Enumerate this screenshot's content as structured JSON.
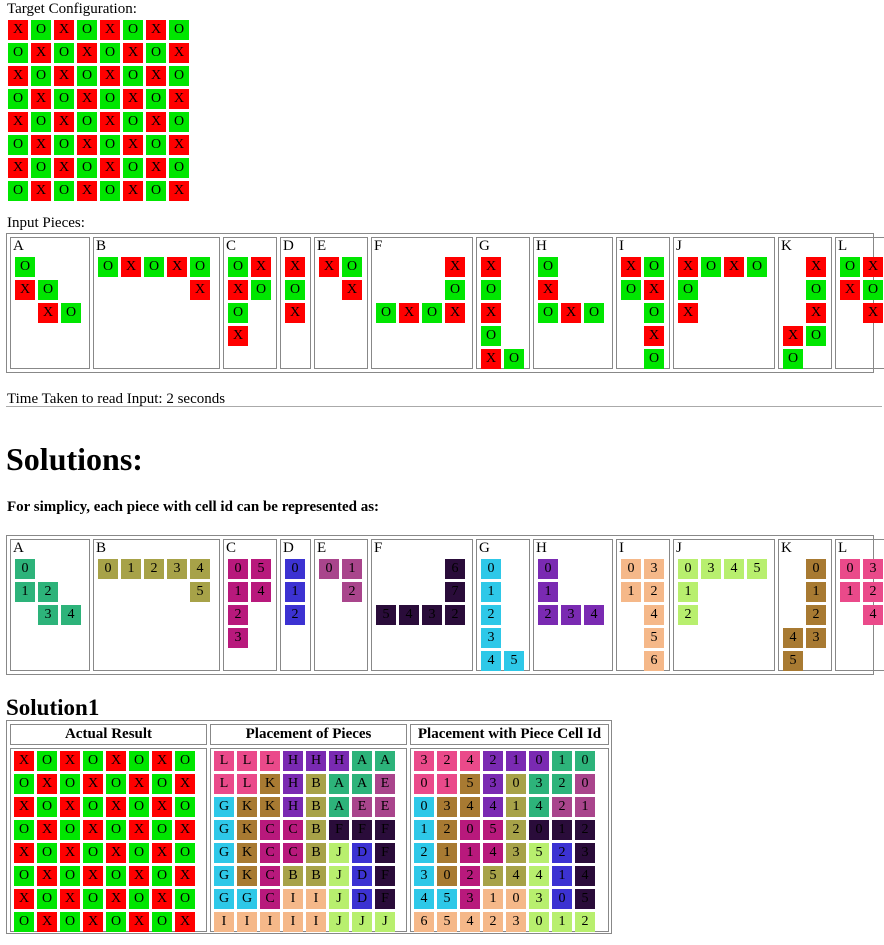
{
  "labels": {
    "target": "Target Configuration:",
    "input": "Input Pieces:",
    "time": "Time Taken to read Input: 2 seconds",
    "solutions": "Solutions:",
    "simplicity": "For simplicy, each piece with cell id can be represented as:",
    "solution1": "Solution1",
    "col_actual": "Actual Result",
    "col_placement": "Placement of Pieces",
    "col_cellid": "Placement with Piece Cell Id"
  },
  "colors": {
    "X": "#ff0000",
    "O": "#00e600",
    "A": "#2db37a",
    "B": "#a7a248",
    "C": "#b8197c",
    "D": "#3c32d2",
    "E": "#a9458c",
    "F": "#2a0c3a",
    "G": "#2ec8e8",
    "H": "#7a2ab2",
    "I": "#f5b889",
    "J": "#b8ef6e",
    "K": "#a87a32",
    "L": "#ea4a8a"
  },
  "target": [
    "XOXOXOXO",
    "OXOXOXOX",
    "XOXOXOXO",
    "OXOXOXOX",
    "XOXOXOXO",
    "OXOXOXOX",
    "XOXOXOXO",
    "OXOXOXOX"
  ],
  "pieces": [
    {
      "name": "A",
      "rows": [
        "O..",
        "XO.",
        ".XO"
      ],
      "ids": [
        "0..",
        "12.",
        ".34"
      ]
    },
    {
      "name": "B",
      "rows": [
        "OXOXO",
        "....X"
      ],
      "ids": [
        "01234",
        "....5"
      ]
    },
    {
      "name": "C",
      "rows": [
        "OX",
        "XO",
        "O.",
        "X."
      ],
      "ids": [
        "05",
        "14",
        "2.",
        "3."
      ]
    },
    {
      "name": "D",
      "rows": [
        "X",
        "O",
        "X"
      ],
      "ids": [
        "0",
        "1",
        "2"
      ]
    },
    {
      "name": "E",
      "rows": [
        "XO",
        ".X"
      ],
      "ids": [
        "01",
        ".2"
      ]
    },
    {
      "name": "F",
      "rows": [
        "...X",
        "...O",
        "OXOX"
      ],
      "ids": [
        "...6",
        "...7",
        "5432"
      ]
    },
    {
      "name": "G",
      "rows": [
        "X.",
        "O.",
        "X.",
        "O.",
        "XO"
      ],
      "ids": [
        "0.",
        "1.",
        "2.",
        "3.",
        "45"
      ]
    },
    {
      "name": "H",
      "rows": [
        "O..",
        "X..",
        "OXO"
      ],
      "ids": [
        "0..",
        "1..",
        "234"
      ]
    },
    {
      "name": "I",
      "rows": [
        "XO",
        "OX",
        ".O",
        ".X",
        ".O"
      ],
      "ids": [
        "03",
        "12",
        ".4",
        ".5",
        ".6"
      ]
    },
    {
      "name": "J",
      "rows": [
        "XOXO",
        "O...",
        "X..."
      ],
      "ids": [
        "0345",
        "1...",
        "2..."
      ]
    },
    {
      "name": "K",
      "rows": [
        ".X",
        ".O",
        ".X",
        "XO",
        "O."
      ],
      "ids": [
        ".0",
        ".1",
        ".2",
        "43",
        "5."
      ]
    },
    {
      "name": "L",
      "rows": [
        "OX",
        "XO",
        ".X"
      ],
      "ids": [
        "03",
        "12",
        ".4"
      ]
    }
  ],
  "solution": {
    "actual": [
      "XOXOXOXO",
      "OXOXOXOX",
      "XOXOXOXO",
      "OXOXOXOX",
      "XOXOXOXO",
      "OXOXOXOX",
      "XOXOXOXO",
      "OXOXOXOX"
    ],
    "placement": [
      "LLLHHHAA",
      "LLKHBAAE",
      "GKKHBAEE",
      "GKCCBFFF",
      "GKCCBJDF",
      "GKCBBJDF",
      "GGCIIJDF",
      "IIIIIJJJ"
    ],
    "cellids": [
      "32421010",
      "01530320",
      "03441421",
      "12052012",
      "21143523",
      "30254414",
      "45310305",
      "65423012"
    ]
  }
}
